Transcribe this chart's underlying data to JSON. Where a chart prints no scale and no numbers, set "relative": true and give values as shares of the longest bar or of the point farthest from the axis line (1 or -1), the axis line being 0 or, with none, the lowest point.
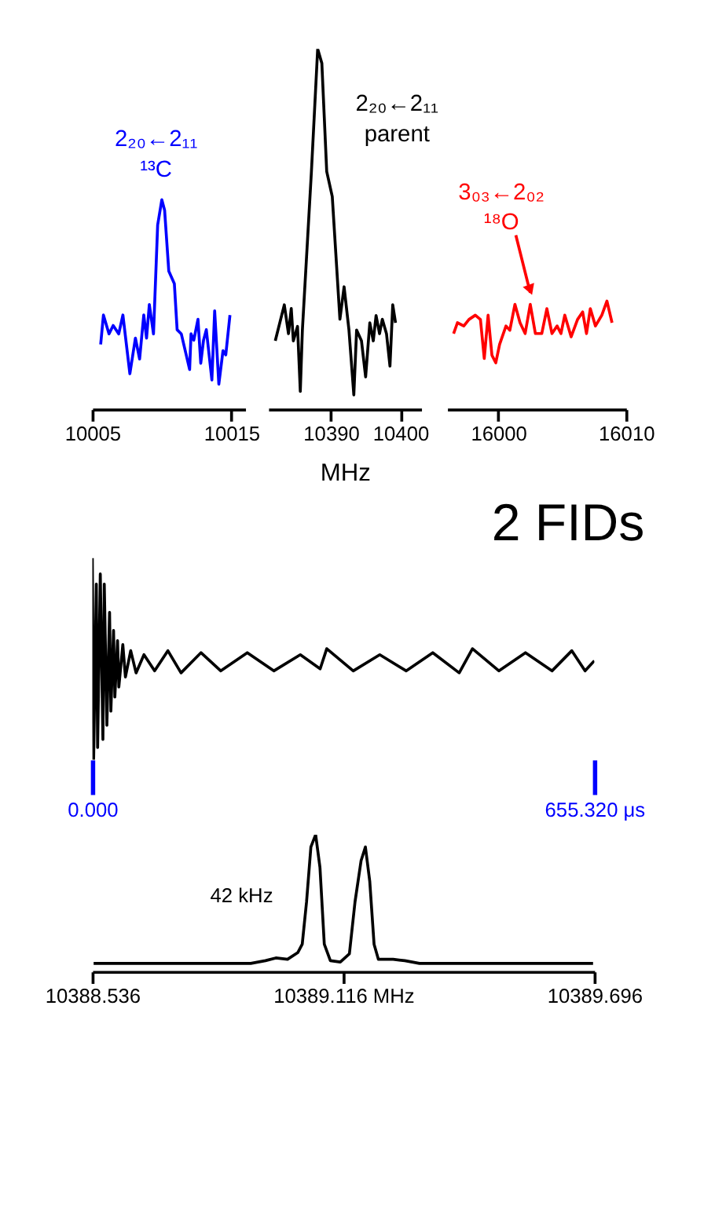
{
  "chart_data": [
    {
      "type": "line",
      "relative": true,
      "color": "#0000ff",
      "xlim": [
        10005,
        10016
      ],
      "xticks": [
        10005,
        10015
      ],
      "x": [
        10005.6,
        10005.8,
        10006.2,
        10006.5,
        10006.9,
        10007.2,
        10007.7,
        10008.1,
        10008.4,
        10008.7,
        10008.9,
        10009.1,
        10009.4,
        10009.7,
        10010.0,
        10010.2,
        10010.5,
        10010.9,
        10011.1,
        10011.4,
        10012.0,
        10012.1,
        10012.3,
        10012.6,
        10012.8,
        10013.0,
        10013.2,
        10013.6,
        10013.8,
        10014.1,
        10014.4,
        10014.6,
        10014.9
      ],
      "values": [
        0.31,
        0.45,
        0.36,
        0.4,
        0.36,
        0.45,
        0.17,
        0.34,
        0.24,
        0.45,
        0.34,
        0.5,
        0.36,
        0.88,
        1.0,
        0.95,
        0.66,
        0.6,
        0.38,
        0.36,
        0.19,
        0.36,
        0.33,
        0.43,
        0.22,
        0.33,
        0.38,
        0.14,
        0.47,
        0.12,
        0.28,
        0.26,
        0.45
      ],
      "annotations": [
        {
          "text": "2₂₀←2₁₁\n¹³C",
          "x": 10010.0,
          "y": 1.0
        }
      ]
    },
    {
      "type": "line",
      "relative": true,
      "color": "#000000",
      "xlim": [
        10381,
        10403
      ],
      "xticks": [
        10390,
        10400
      ],
      "xlabel": "MHz",
      "x": [
        10382.0,
        10383.3,
        10383.9,
        10384.3,
        10384.6,
        10385.2,
        10385.6,
        10385.9,
        10387.2,
        10388.1,
        10388.7,
        10389.4,
        10390.2,
        10391.3,
        10391.9,
        10392.6,
        10393.3,
        10393.7,
        10394.4,
        10395.0,
        10395.6,
        10396.1,
        10396.5,
        10397.0,
        10397.4,
        10398.0,
        10398.5,
        10398.9,
        10399.3
      ],
      "values": [
        0.19,
        0.29,
        0.21,
        0.28,
        0.19,
        0.23,
        0.05,
        0.22,
        0.66,
        1.0,
        0.96,
        0.66,
        0.59,
        0.25,
        0.34,
        0.22,
        0.04,
        0.22,
        0.19,
        0.09,
        0.24,
        0.19,
        0.26,
        0.21,
        0.25,
        0.21,
        0.12,
        0.29,
        0.24
      ],
      "annotations": [
        {
          "text": "2₂₀←2₁₁\nparent",
          "x": 10388.1,
          "y": 1.0
        }
      ]
    },
    {
      "type": "line",
      "relative": true,
      "color": "#ff0000",
      "xlim": [
        15996,
        16010
      ],
      "xticks": [
        16000,
        16010
      ],
      "x": [
        15996.5,
        15996.8,
        15997.3,
        15997.7,
        15998.2,
        15998.6,
        15998.9,
        15999.2,
        15999.5,
        15999.8,
        16000.1,
        16000.6,
        16000.9,
        16001.3,
        16001.7,
        16002.1,
        16002.5,
        16002.9,
        16003.4,
        16003.8,
        16004.2,
        16004.6,
        16004.9,
        16005.2,
        16005.7,
        16006.2,
        16006.6,
        16006.9,
        16007.2,
        16007.6,
        16008.1,
        16008.5,
        16008.9
      ],
      "values": [
        0.7,
        0.8,
        0.77,
        0.83,
        0.87,
        0.83,
        0.47,
        0.87,
        0.5,
        0.43,
        0.6,
        0.77,
        0.73,
        0.97,
        0.8,
        0.7,
        0.97,
        0.7,
        0.7,
        0.93,
        0.7,
        0.77,
        0.7,
        0.87,
        0.67,
        0.83,
        0.9,
        0.7,
        0.93,
        0.77,
        0.87,
        1.0,
        0.8
      ],
      "annotations": [
        {
          "text": "3₀₃←2₀₂\n¹⁸O",
          "x": 16002.5,
          "y": 0.97
        }
      ]
    },
    {
      "type": "line",
      "relative": true,
      "color": "#000000",
      "title": "2 FIDs",
      "xlim": [
        0,
        655.32
      ],
      "xticks": [
        {
          "value": 0,
          "label": "0.000"
        },
        {
          "value": 655.32,
          "label": "655.320 μs"
        }
      ],
      "x": [
        0,
        1.7,
        5.2,
        6.9,
        10.4,
        13.8,
        15.6,
        19.0,
        22.5,
        24.2,
        27.7,
        29.4,
        32.9,
        34.6,
        39.8,
        43.2,
        50.1,
        57.1,
        67.4,
        81.3,
        98.6,
        115.8,
        141.8,
        167.7,
        202.3,
        236.9,
        271.5,
        297.4,
        306.0,
        340.6,
        375.2,
        409.8,
        444.4,
        478.9,
        496.2,
        530.8,
        565.4,
        600.0,
        625.9,
        643.2,
        655.32
      ],
      "values": [
        1.0,
        0.0,
        0.87,
        0.06,
        0.92,
        0.1,
        0.87,
        0.17,
        0.73,
        0.24,
        0.64,
        0.31,
        0.59,
        0.36,
        0.57,
        0.41,
        0.54,
        0.43,
        0.52,
        0.44,
        0.54,
        0.43,
        0.53,
        0.44,
        0.53,
        0.44,
        0.52,
        0.45,
        0.55,
        0.44,
        0.52,
        0.44,
        0.53,
        0.43,
        0.55,
        0.44,
        0.53,
        0.44,
        0.54,
        0.44,
        0.49
      ]
    },
    {
      "type": "line",
      "relative": true,
      "color": "#000000",
      "xlim": [
        10388.536,
        10389.696
      ],
      "xticks": [
        10388.536,
        {
          "value": 10389.116,
          "label": "10389.116 MHz"
        },
        10389.696
      ],
      "x": [
        10388.539,
        10388.682,
        10388.818,
        10388.902,
        10388.936,
        10388.96,
        10388.987,
        10389.011,
        10389.021,
        10389.031,
        10389.041,
        10389.052,
        10389.062,
        10389.072,
        10389.086,
        10389.109,
        10389.13,
        10389.143,
        10389.157,
        10389.167,
        10389.177,
        10389.187,
        10389.197,
        10389.231,
        10389.258,
        10389.292,
        10389.428,
        10389.564,
        10389.693
      ],
      "values": [
        0.06,
        0.06,
        0.06,
        0.06,
        0.08,
        0.1,
        0.09,
        0.14,
        0.2,
        0.51,
        0.91,
        1.0,
        0.76,
        0.2,
        0.08,
        0.07,
        0.13,
        0.51,
        0.81,
        0.91,
        0.66,
        0.2,
        0.09,
        0.09,
        0.08,
        0.06,
        0.06,
        0.06,
        0.06
      ],
      "annotations": [
        "42 kHz"
      ]
    }
  ]
}
